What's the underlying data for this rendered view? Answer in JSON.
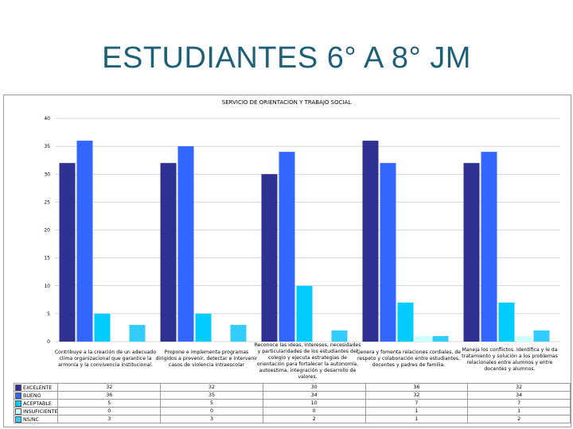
{
  "slide": {
    "title": "ESTUDIANTES 6° A 8° JM"
  },
  "chart_data": {
    "type": "bar",
    "title": "SERVICIO DE ORIENTACIÓN Y TRABAJO SOCIAL",
    "categories": [
      "Contribuye a la creación de un adecuado clima organizacional que garantice la armonía y la convivencia institucional.",
      "Propone e implementa programas dirigidos a prevenir, detectar e intervenir casos de violencia intraescolar",
      "Reconoce las ideas, intereses, necesidades y particularidades de los estudiantes del colegio y ejecuta estrategias de orientación para fortalecer la autonomía, autoestima, integración y desarrollo de valores.",
      "Genera y fomenta relaciones cordiales, de respeto y colaboración entre estudiantes, docentes y padres de familia.",
      "Maneja los conflictos. Identifica y le da tratamiento y solución a los problemas relacionales entre alumnos y entre docentes y alumnos."
    ],
    "series": [
      {
        "name": "EXCELENTE",
        "color": "#2e3192",
        "values": [
          32,
          32,
          30,
          36,
          32
        ]
      },
      {
        "name": "BUENO",
        "color": "#3366ff",
        "values": [
          36,
          35,
          34,
          32,
          34
        ]
      },
      {
        "name": "ACEPTABLE",
        "color": "#00ccff",
        "values": [
          5,
          5,
          10,
          7,
          7
        ]
      },
      {
        "name": "INSUFICIENTE",
        "color": "#ccffff",
        "values": [
          0,
          0,
          0,
          1,
          1
        ]
      },
      {
        "name": "NS/NC",
        "color": "#33ccff",
        "values": [
          3,
          3,
          2,
          1,
          2
        ]
      }
    ],
    "ylim": [
      0,
      40
    ],
    "yticks": [
      0,
      5,
      10,
      15,
      20,
      25,
      30,
      35,
      40
    ],
    "grid": true,
    "legend": "data-table"
  }
}
